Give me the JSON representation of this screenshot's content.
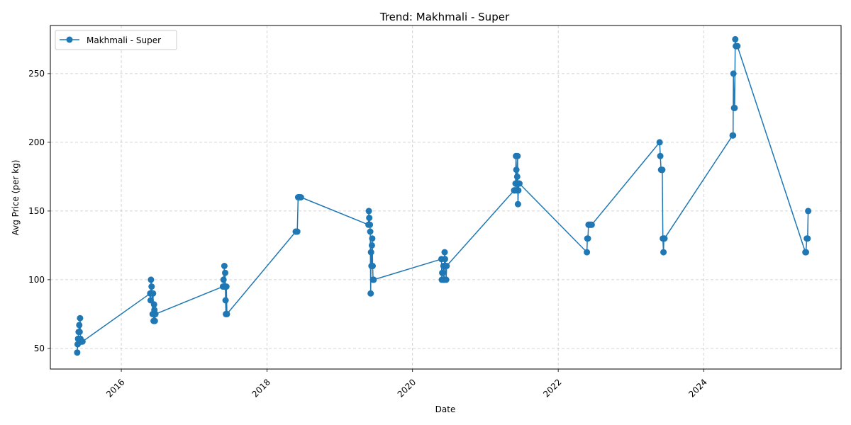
{
  "chart_data": {
    "type": "line",
    "title": "Trend: Makhmali - Super",
    "xlabel": "Date",
    "ylabel": "Avg Price (per kg)",
    "xlim": [
      "2015-01-10",
      "2025-11-20"
    ],
    "ylim": [
      35,
      285
    ],
    "x_ticks": [
      "2016",
      "2018",
      "2020",
      "2022",
      "2024"
    ],
    "y_ticks": [
      50,
      100,
      150,
      200,
      250
    ],
    "grid": true,
    "legend_position": "top-left",
    "color": "#1f77b4",
    "series": [
      {
        "name": "Makhmali - Super",
        "points": [
          [
            "2015-05-25",
            47
          ],
          [
            "2015-05-27",
            53
          ],
          [
            "2015-05-29",
            57
          ],
          [
            "2015-06-01",
            62
          ],
          [
            "2015-06-04",
            67
          ],
          [
            "2015-06-06",
            62
          ],
          [
            "2015-06-08",
            72
          ],
          [
            "2015-06-10",
            57
          ],
          [
            "2015-06-13",
            55
          ],
          [
            "2015-06-16",
            55
          ],
          [
            "2015-06-20",
            55
          ],
          [
            "2016-05-25",
            90
          ],
          [
            "2016-05-27",
            85
          ],
          [
            "2016-05-29",
            100
          ],
          [
            "2016-06-01",
            95
          ],
          [
            "2016-06-04",
            90
          ],
          [
            "2016-06-06",
            75
          ],
          [
            "2016-06-08",
            90
          ],
          [
            "2016-06-11",
            70
          ],
          [
            "2016-06-13",
            82
          ],
          [
            "2016-06-15",
            78
          ],
          [
            "2016-06-17",
            70
          ],
          [
            "2016-06-20",
            75
          ],
          [
            "2017-05-25",
            95
          ],
          [
            "2017-05-28",
            100
          ],
          [
            "2017-06-01",
            110
          ],
          [
            "2017-06-03",
            95
          ],
          [
            "2017-06-05",
            105
          ],
          [
            "2017-06-07",
            85
          ],
          [
            "2017-06-09",
            75
          ],
          [
            "2017-06-11",
            95
          ],
          [
            "2017-06-14",
            75
          ],
          [
            "2018-05-25",
            135
          ],
          [
            "2018-05-29",
            135
          ],
          [
            "2018-06-02",
            135
          ],
          [
            "2018-06-06",
            160
          ],
          [
            "2018-06-10",
            160
          ],
          [
            "2018-06-14",
            160
          ],
          [
            "2018-06-20",
            160
          ],
          [
            "2019-05-25",
            140
          ],
          [
            "2019-05-27",
            150
          ],
          [
            "2019-05-29",
            145
          ],
          [
            "2019-06-01",
            140
          ],
          [
            "2019-06-03",
            135
          ],
          [
            "2019-06-05",
            90
          ],
          [
            "2019-06-07",
            120
          ],
          [
            "2019-06-09",
            110
          ],
          [
            "2019-06-11",
            125
          ],
          [
            "2019-06-13",
            130
          ],
          [
            "2019-06-15",
            110
          ],
          [
            "2019-06-17",
            100
          ],
          [
            "2019-06-20",
            100
          ],
          [
            "2020-05-25",
            115
          ],
          [
            "2020-05-27",
            100
          ],
          [
            "2020-05-29",
            105
          ],
          [
            "2020-06-01",
            105
          ],
          [
            "2020-06-04",
            110
          ],
          [
            "2020-06-06",
            100
          ],
          [
            "2020-06-08",
            100
          ],
          [
            "2020-06-10",
            120
          ],
          [
            "2020-06-12",
            115
          ],
          [
            "2020-06-15",
            110
          ],
          [
            "2020-06-18",
            100
          ],
          [
            "2020-06-20",
            110
          ],
          [
            "2021-05-25",
            165
          ],
          [
            "2021-05-28",
            165
          ],
          [
            "2021-06-01",
            170
          ],
          [
            "2021-06-03",
            190
          ],
          [
            "2021-06-05",
            180
          ],
          [
            "2021-06-07",
            165
          ],
          [
            "2021-06-09",
            175
          ],
          [
            "2021-06-11",
            190
          ],
          [
            "2021-06-13",
            155
          ],
          [
            "2021-06-15",
            165
          ],
          [
            "2021-06-17",
            170
          ],
          [
            "2021-06-20",
            170
          ],
          [
            "2022-05-25",
            120
          ],
          [
            "2022-05-27",
            130
          ],
          [
            "2022-05-30",
            130
          ],
          [
            "2022-06-02",
            140
          ],
          [
            "2022-06-06",
            140
          ],
          [
            "2022-06-10",
            140
          ],
          [
            "2022-06-14",
            140
          ],
          [
            "2022-06-18",
            140
          ],
          [
            "2023-05-25",
            200
          ],
          [
            "2023-05-28",
            190
          ],
          [
            "2023-06-01",
            180
          ],
          [
            "2023-06-04",
            180
          ],
          [
            "2023-06-07",
            180
          ],
          [
            "2023-06-10",
            130
          ],
          [
            "2023-06-13",
            120
          ],
          [
            "2023-06-15",
            130
          ],
          [
            "2023-06-18",
            130
          ],
          [
            "2024-05-25",
            205
          ],
          [
            "2024-05-27",
            205
          ],
          [
            "2024-05-29",
            250
          ],
          [
            "2024-06-01",
            225
          ],
          [
            "2024-06-04",
            225
          ],
          [
            "2024-06-07",
            275
          ],
          [
            "2024-06-10",
            270
          ],
          [
            "2024-06-14",
            270
          ],
          [
            "2024-06-18",
            270
          ],
          [
            "2025-05-25",
            120
          ],
          [
            "2025-05-28",
            120
          ],
          [
            "2025-06-01",
            130
          ],
          [
            "2025-06-05",
            130
          ],
          [
            "2025-06-08",
            150
          ]
        ]
      }
    ]
  }
}
